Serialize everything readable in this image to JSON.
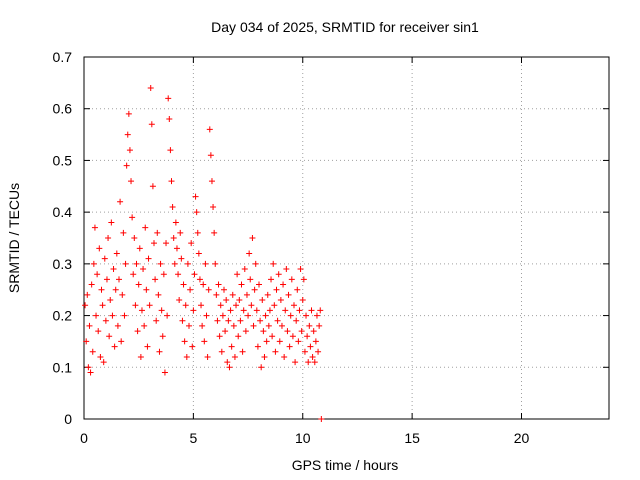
{
  "chart_data": {
    "type": "scatter",
    "title": "Day 034 of 2025, SRMTID for receiver sin1",
    "xlabel": "GPS time / hours",
    "ylabel": "SRMTID / TECUs",
    "xlim": [
      0,
      24
    ],
    "ylim": [
      0,
      0.7
    ],
    "xticks": [
      0,
      5,
      10,
      15,
      20
    ],
    "yticks": [
      0,
      0.1,
      0.2,
      0.3,
      0.4,
      0.5,
      0.6,
      0.7
    ],
    "grid": true,
    "marker": "+",
    "color": "#ff0000",
    "series": [
      {
        "name": "SRMTID",
        "points": [
          [
            0.05,
            0.22
          ],
          [
            0.1,
            0.15
          ],
          [
            0.15,
            0.24
          ],
          [
            0.2,
            0.1
          ],
          [
            0.25,
            0.18
          ],
          [
            0.3,
            0.09
          ],
          [
            0.35,
            0.26
          ],
          [
            0.4,
            0.13
          ],
          [
            0.45,
            0.3
          ],
          [
            0.5,
            0.37
          ],
          [
            0.55,
            0.2
          ],
          [
            0.6,
            0.28
          ],
          [
            0.65,
            0.17
          ],
          [
            0.7,
            0.33
          ],
          [
            0.75,
            0.12
          ],
          [
            0.8,
            0.25
          ],
          [
            0.85,
            0.22
          ],
          [
            0.9,
            0.11
          ],
          [
            0.95,
            0.31
          ],
          [
            1.0,
            0.19
          ],
          [
            1.05,
            0.27
          ],
          [
            1.1,
            0.35
          ],
          [
            1.15,
            0.16
          ],
          [
            1.2,
            0.23
          ],
          [
            1.25,
            0.38
          ],
          [
            1.3,
            0.2
          ],
          [
            1.35,
            0.29
          ],
          [
            1.4,
            0.14
          ],
          [
            1.45,
            0.25
          ],
          [
            1.5,
            0.32
          ],
          [
            1.55,
            0.18
          ],
          [
            1.6,
            0.27
          ],
          [
            1.65,
            0.42
          ],
          [
            1.7,
            0.15
          ],
          [
            1.75,
            0.24
          ],
          [
            1.8,
            0.36
          ],
          [
            1.85,
            0.2
          ],
          [
            1.9,
            0.3
          ],
          [
            1.95,
            0.49
          ],
          [
            2.0,
            0.55
          ],
          [
            2.05,
            0.59
          ],
          [
            2.1,
            0.52
          ],
          [
            2.15,
            0.46
          ],
          [
            2.2,
            0.39
          ],
          [
            2.25,
            0.28
          ],
          [
            2.3,
            0.35
          ],
          [
            2.35,
            0.22
          ],
          [
            2.4,
            0.3
          ],
          [
            2.45,
            0.17
          ],
          [
            2.5,
            0.26
          ],
          [
            2.55,
            0.33
          ],
          [
            2.6,
            0.12
          ],
          [
            2.65,
            0.21
          ],
          [
            2.7,
            0.29
          ],
          [
            2.75,
            0.18
          ],
          [
            2.8,
            0.37
          ],
          [
            2.85,
            0.25
          ],
          [
            2.9,
            0.14
          ],
          [
            2.95,
            0.31
          ],
          [
            3.0,
            0.22
          ],
          [
            3.05,
            0.64
          ],
          [
            3.1,
            0.57
          ],
          [
            3.15,
            0.45
          ],
          [
            3.2,
            0.34
          ],
          [
            3.25,
            0.27
          ],
          [
            3.3,
            0.19
          ],
          [
            3.35,
            0.36
          ],
          [
            3.4,
            0.24
          ],
          [
            3.45,
            0.13
          ],
          [
            3.5,
            0.3
          ],
          [
            3.55,
            0.21
          ],
          [
            3.6,
            0.16
          ],
          [
            3.65,
            0.28
          ],
          [
            3.7,
            0.09
          ],
          [
            3.75,
            0.34
          ],
          [
            3.8,
            0.2
          ],
          [
            3.85,
            0.62
          ],
          [
            3.9,
            0.58
          ],
          [
            3.95,
            0.52
          ],
          [
            4.0,
            0.46
          ],
          [
            4.05,
            0.41
          ],
          [
            4.1,
            0.35
          ],
          [
            4.15,
            0.3
          ],
          [
            4.2,
            0.38
          ],
          [
            4.25,
            0.33
          ],
          [
            4.3,
            0.28
          ],
          [
            4.35,
            0.23
          ],
          [
            4.4,
            0.36
          ],
          [
            4.45,
            0.31
          ],
          [
            4.5,
            0.19
          ],
          [
            4.55,
            0.26
          ],
          [
            4.6,
            0.15
          ],
          [
            4.65,
            0.22
          ],
          [
            4.7,
            0.12
          ],
          [
            4.75,
            0.3
          ],
          [
            4.8,
            0.18
          ],
          [
            4.85,
            0.25
          ],
          [
            4.9,
            0.34
          ],
          [
            4.95,
            0.14
          ],
          [
            5.0,
            0.21
          ],
          [
            5.05,
            0.28
          ],
          [
            5.1,
            0.43
          ],
          [
            5.15,
            0.4
          ],
          [
            5.2,
            0.36
          ],
          [
            5.25,
            0.32
          ],
          [
            5.3,
            0.27
          ],
          [
            5.35,
            0.22
          ],
          [
            5.4,
            0.18
          ],
          [
            5.45,
            0.26
          ],
          [
            5.5,
            0.15
          ],
          [
            5.55,
            0.3
          ],
          [
            5.6,
            0.2
          ],
          [
            5.65,
            0.12
          ],
          [
            5.7,
            0.25
          ],
          [
            5.75,
            0.56
          ],
          [
            5.8,
            0.51
          ],
          [
            5.85,
            0.46
          ],
          [
            5.9,
            0.41
          ],
          [
            5.95,
            0.36
          ],
          [
            6.0,
            0.3
          ],
          [
            6.05,
            0.24
          ],
          [
            6.1,
            0.19
          ],
          [
            6.15,
            0.26
          ],
          [
            6.2,
            0.16
          ],
          [
            6.25,
            0.22
          ],
          [
            6.3,
            0.13
          ],
          [
            6.35,
            0.2
          ],
          [
            6.4,
            0.25
          ],
          [
            6.45,
            0.17
          ],
          [
            6.5,
            0.23
          ],
          [
            6.55,
            0.11
          ],
          [
            6.6,
            0.19
          ],
          [
            6.65,
            0.1
          ],
          [
            6.7,
            0.21
          ],
          [
            6.75,
            0.14
          ],
          [
            6.8,
            0.24
          ],
          [
            6.85,
            0.18
          ],
          [
            6.9,
            0.12
          ],
          [
            6.95,
            0.22
          ],
          [
            7.0,
            0.28
          ],
          [
            7.05,
            0.16
          ],
          [
            7.1,
            0.23
          ],
          [
            7.15,
            0.19
          ],
          [
            7.2,
            0.26
          ],
          [
            7.25,
            0.13
          ],
          [
            7.3,
            0.21
          ],
          [
            7.35,
            0.29
          ],
          [
            7.4,
            0.17
          ],
          [
            7.45,
            0.24
          ],
          [
            7.5,
            0.2
          ],
          [
            7.55,
            0.32
          ],
          [
            7.6,
            0.27
          ],
          [
            7.65,
            0.22
          ],
          [
            7.7,
            0.35
          ],
          [
            7.75,
            0.18
          ],
          [
            7.8,
            0.25
          ],
          [
            7.85,
            0.3
          ],
          [
            7.9,
            0.21
          ],
          [
            7.95,
            0.14
          ],
          [
            8.0,
            0.26
          ],
          [
            8.05,
            0.19
          ],
          [
            8.1,
            0.1
          ],
          [
            8.15,
            0.23
          ],
          [
            8.2,
            0.17
          ],
          [
            8.25,
            0.12
          ],
          [
            8.3,
            0.2
          ],
          [
            8.35,
            0.15
          ],
          [
            8.4,
            0.24
          ],
          [
            8.45,
            0.18
          ],
          [
            8.5,
            0.21
          ],
          [
            8.55,
            0.27
          ],
          [
            8.6,
            0.16
          ],
          [
            8.65,
            0.3
          ],
          [
            8.7,
            0.22
          ],
          [
            8.75,
            0.13
          ],
          [
            8.8,
            0.25
          ],
          [
            8.85,
            0.19
          ],
          [
            8.9,
            0.28
          ],
          [
            8.95,
            0.15
          ],
          [
            9.0,
            0.23
          ],
          [
            9.05,
            0.18
          ],
          [
            9.1,
            0.26
          ],
          [
            9.15,
            0.12
          ],
          [
            9.2,
            0.21
          ],
          [
            9.25,
            0.29
          ],
          [
            9.3,
            0.17
          ],
          [
            9.35,
            0.24
          ],
          [
            9.4,
            0.14
          ],
          [
            9.45,
            0.2
          ],
          [
            9.5,
            0.27
          ],
          [
            9.55,
            0.16
          ],
          [
            9.6,
            0.22
          ],
          [
            9.65,
            0.11
          ],
          [
            9.7,
            0.19
          ],
          [
            9.75,
            0.25
          ],
          [
            9.8,
            0.15
          ],
          [
            9.85,
            0.21
          ],
          [
            9.9,
            0.29
          ],
          [
            9.95,
            0.17
          ],
          [
            10.0,
            0.23
          ],
          [
            10.05,
            0.27
          ],
          [
            10.1,
            0.13
          ],
          [
            10.15,
            0.2
          ],
          [
            10.2,
            0.16
          ],
          [
            10.25,
            0.11
          ],
          [
            10.3,
            0.18
          ],
          [
            10.35,
            0.14
          ],
          [
            10.4,
            0.21
          ],
          [
            10.45,
            0.12
          ],
          [
            10.5,
            0.17
          ],
          [
            10.55,
            0.11
          ],
          [
            10.6,
            0.15
          ],
          [
            10.65,
            0.2
          ],
          [
            10.7,
            0.13
          ],
          [
            10.75,
            0.18
          ],
          [
            10.8,
            0.21
          ],
          [
            10.85,
            0.0
          ]
        ]
      }
    ]
  }
}
